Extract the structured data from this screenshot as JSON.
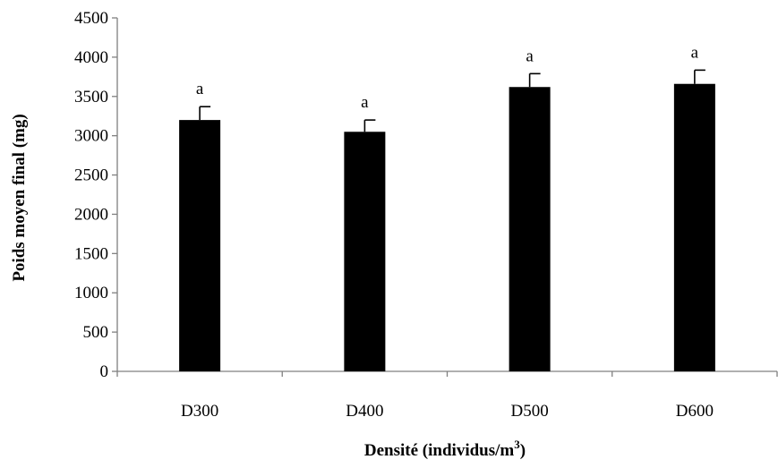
{
  "chart_data": {
    "type": "bar",
    "categories": [
      "D300",
      "D400",
      "D500",
      "D600"
    ],
    "values": [
      3200,
      3050,
      3620,
      3660
    ],
    "errors": [
      170,
      150,
      170,
      175
    ],
    "significance": [
      "a",
      "a",
      "a",
      "a"
    ],
    "ylim": [
      0,
      4500
    ],
    "yticks": [
      "0",
      "500",
      "1000",
      "1500",
      "2000",
      "2500",
      "3000",
      "3500",
      "4000",
      "4500"
    ],
    "ylabel": "Poids moyen final (mg)",
    "xlabel_main": "Densité (individus/m",
    "xlabel_sup": "3",
    "xlabel_end": ")",
    "grid": false,
    "bar_color": "#000000",
    "axis_color": "#808080"
  }
}
